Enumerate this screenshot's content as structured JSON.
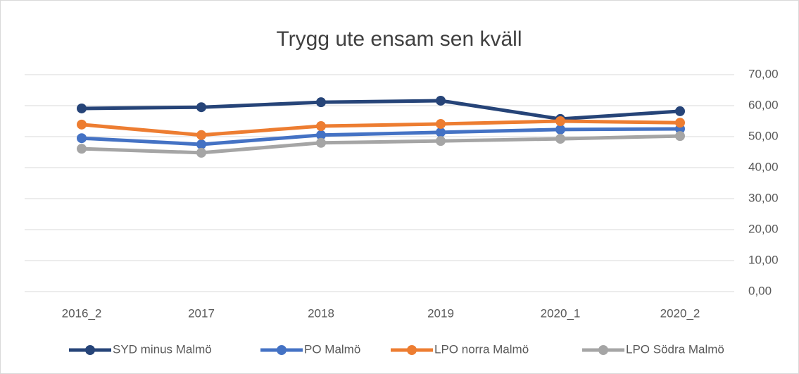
{
  "chart_data": {
    "type": "line",
    "title": "Trygg ute ensam sen kväll",
    "categories": [
      "2016_2",
      "2017",
      "2018",
      "2019",
      "2020_1",
      "2020_2"
    ],
    "series": [
      {
        "name": "SYD minus Malmö",
        "color": "#264478",
        "values": [
          59.1,
          59.5,
          61.1,
          61.6,
          55.7,
          58.2
        ]
      },
      {
        "name": "PO Malmö",
        "color": "#4472c4",
        "values": [
          49.5,
          47.5,
          50.5,
          51.4,
          52.3,
          52.5
        ]
      },
      {
        "name": "LPO norra Malmö",
        "color": "#ed7d31",
        "values": [
          53.9,
          50.5,
          53.4,
          54.1,
          55.0,
          54.5
        ]
      },
      {
        "name": "LPO Södra Malmö",
        "color": "#a5a5a5",
        "values": [
          46.1,
          44.8,
          48.0,
          48.6,
          49.3,
          50.2
        ]
      }
    ],
    "ylim": [
      0,
      70
    ],
    "yticks": [
      {
        "value": 0,
        "label": "0,00"
      },
      {
        "value": 10,
        "label": "10,00"
      },
      {
        "value": 20,
        "label": "20,00"
      },
      {
        "value": 30,
        "label": "30,00"
      },
      {
        "value": 40,
        "label": "40,00"
      },
      {
        "value": 50,
        "label": "50,00"
      },
      {
        "value": 60,
        "label": "60,00"
      },
      {
        "value": 70,
        "label": "70,00"
      }
    ],
    "grid": true,
    "legend": "bottom"
  }
}
